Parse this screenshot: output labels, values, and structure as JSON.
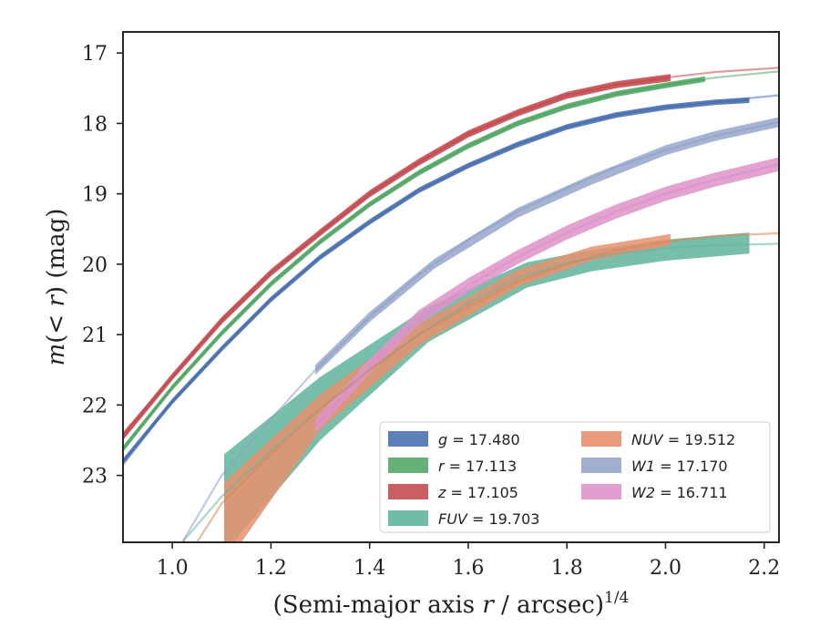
{
  "chart_data": {
    "type": "line",
    "xlabel_main": "(Semi-major axis ",
    "xlabel_var": "r",
    "xlabel_unit": " / arcsec)",
    "xlabel_power": "1/4",
    "ylabel_prefix": "m(",
    "ylabel_ineq": "< ",
    "ylabel_var": "r",
    "ylabel_suffix": ") (mag)",
    "xlim": [
      0.9,
      2.23
    ],
    "ylim": [
      23.95,
      16.7
    ],
    "y_inverted": true,
    "x_ticks": [
      1.0,
      1.2,
      1.4,
      1.6,
      1.8,
      2.0,
      2.2
    ],
    "x_tick_labels": [
      "1.0",
      "1.2",
      "1.4",
      "1.6",
      "1.8",
      "2.0",
      "2.2"
    ],
    "y_ticks": [
      17,
      18,
      19,
      20,
      21,
      22,
      23
    ],
    "y_tick_labels": [
      "17",
      "18",
      "19",
      "20",
      "21",
      "22",
      "23"
    ],
    "grid": false,
    "legend": {
      "placement": "lower-right",
      "columns": 2,
      "entries": [
        {
          "var": "g",
          "text": " = 17.480",
          "series": "g"
        },
        {
          "var": "r",
          "text": " = 17.113",
          "series": "r"
        },
        {
          "var": "z",
          "text": " = 17.105",
          "series": "z"
        },
        {
          "var": "FUV",
          "text": " = 19.703",
          "series": "FUV"
        },
        {
          "var": "NUV",
          "text": " = 19.512",
          "series": "NUV"
        },
        {
          "var": "W1",
          "text": " = 17.170",
          "series": "W1"
        },
        {
          "var": "W2",
          "text": " = 16.711",
          "series": "W2"
        }
      ]
    },
    "series": [
      {
        "name": "g",
        "color": "#4c72b0",
        "model": [
          [
            0.9,
            22.85
          ],
          [
            1.0,
            21.95
          ],
          [
            1.1,
            21.2
          ],
          [
            1.2,
            20.5
          ],
          [
            1.3,
            19.9
          ],
          [
            1.4,
            19.4
          ],
          [
            1.5,
            18.95
          ],
          [
            1.6,
            18.6
          ],
          [
            1.7,
            18.3
          ],
          [
            1.8,
            18.05
          ],
          [
            1.9,
            17.88
          ],
          [
            2.0,
            17.77
          ],
          [
            2.1,
            17.69
          ],
          [
            2.23,
            17.6
          ]
        ],
        "profile": [
          [
            0.9,
            22.8
          ],
          [
            1.0,
            21.95
          ],
          [
            1.1,
            21.2
          ],
          [
            1.2,
            20.5
          ],
          [
            1.3,
            19.9
          ],
          [
            1.4,
            19.4
          ],
          [
            1.5,
            18.95
          ],
          [
            1.6,
            18.6
          ],
          [
            1.7,
            18.3
          ],
          [
            1.8,
            18.05
          ],
          [
            1.9,
            17.88
          ],
          [
            2.0,
            17.77
          ],
          [
            2.1,
            17.7
          ],
          [
            2.17,
            17.67
          ]
        ],
        "err": 0.04,
        "profile_x_end": 2.17
      },
      {
        "name": "r",
        "color": "#55a868",
        "model": [
          [
            0.9,
            22.65
          ],
          [
            1.0,
            21.75
          ],
          [
            1.1,
            20.98
          ],
          [
            1.2,
            20.28
          ],
          [
            1.3,
            19.68
          ],
          [
            1.4,
            19.15
          ],
          [
            1.5,
            18.7
          ],
          [
            1.6,
            18.32
          ],
          [
            1.7,
            18.0
          ],
          [
            1.8,
            17.76
          ],
          [
            1.9,
            17.57
          ],
          [
            2.0,
            17.45
          ],
          [
            2.1,
            17.35
          ],
          [
            2.23,
            17.26
          ]
        ],
        "profile": [
          [
            0.9,
            22.62
          ],
          [
            1.0,
            21.75
          ],
          [
            1.1,
            20.98
          ],
          [
            1.2,
            20.28
          ],
          [
            1.3,
            19.68
          ],
          [
            1.4,
            19.15
          ],
          [
            1.5,
            18.7
          ],
          [
            1.6,
            18.32
          ],
          [
            1.7,
            18.0
          ],
          [
            1.8,
            17.76
          ],
          [
            1.9,
            17.58
          ],
          [
            2.0,
            17.46
          ],
          [
            2.08,
            17.37
          ]
        ],
        "err": 0.04
      },
      {
        "name": "z",
        "color": "#c44e52",
        "model": [
          [
            0.9,
            22.4
          ],
          [
            1.0,
            21.6
          ],
          [
            1.1,
            20.8
          ],
          [
            1.2,
            20.12
          ],
          [
            1.3,
            19.55
          ],
          [
            1.4,
            19.0
          ],
          [
            1.5,
            18.55
          ],
          [
            1.6,
            18.15
          ],
          [
            1.7,
            17.85
          ],
          [
            1.8,
            17.6
          ],
          [
            1.9,
            17.45
          ],
          [
            2.0,
            17.35
          ],
          [
            2.1,
            17.27
          ],
          [
            2.23,
            17.21
          ]
        ],
        "profile": [
          [
            0.9,
            22.45
          ],
          [
            1.0,
            21.6
          ],
          [
            1.1,
            20.8
          ],
          [
            1.2,
            20.12
          ],
          [
            1.3,
            19.55
          ],
          [
            1.4,
            19.0
          ],
          [
            1.5,
            18.55
          ],
          [
            1.6,
            18.15
          ],
          [
            1.7,
            17.85
          ],
          [
            1.8,
            17.6
          ],
          [
            1.9,
            17.45
          ],
          [
            2.01,
            17.35
          ]
        ],
        "err": 0.05
      },
      {
        "name": "FUV",
        "color": "#64b5a0",
        "band_color": "#5fb49c",
        "model": [
          [
            1.02,
            23.95
          ],
          [
            1.1,
            23.3
          ],
          [
            1.2,
            22.65
          ],
          [
            1.3,
            22.05
          ],
          [
            1.4,
            21.5
          ],
          [
            1.5,
            21.0
          ],
          [
            1.6,
            20.55
          ],
          [
            1.7,
            20.2
          ],
          [
            1.8,
            19.98
          ],
          [
            1.9,
            19.85
          ],
          [
            2.0,
            19.77
          ],
          [
            2.1,
            19.73
          ],
          [
            2.23,
            19.71
          ]
        ],
        "profile": [
          [
            1.105,
            23.4
          ],
          [
            1.3,
            22.05
          ],
          [
            1.52,
            20.85
          ],
          [
            1.72,
            20.15
          ],
          [
            1.85,
            19.95
          ],
          [
            2.0,
            19.8
          ],
          [
            2.17,
            19.7
          ]
        ],
        "err_lo": [
          0.7,
          0.45,
          0.25,
          0.18,
          0.15,
          0.15,
          0.15
        ],
        "err_hi": [
          0.7,
          0.45,
          0.25,
          0.18,
          0.15,
          0.15,
          0.15
        ]
      },
      {
        "name": "NUV",
        "color": "#dd8452",
        "band_color": "#e8906e",
        "model": [
          [
            1.05,
            23.95
          ],
          [
            1.1,
            23.4
          ],
          [
            1.2,
            22.7
          ],
          [
            1.3,
            22.05
          ],
          [
            1.4,
            21.5
          ],
          [
            1.5,
            21.0
          ],
          [
            1.6,
            20.6
          ],
          [
            1.7,
            20.25
          ],
          [
            1.8,
            20.0
          ],
          [
            1.9,
            19.8
          ],
          [
            2.0,
            19.68
          ],
          [
            2.1,
            19.6
          ],
          [
            2.23,
            19.56
          ]
        ],
        "profile": [
          [
            1.105,
            23.7
          ],
          [
            1.3,
            22.1
          ],
          [
            1.5,
            21.0
          ],
          [
            1.7,
            20.2
          ],
          [
            1.85,
            19.85
          ],
          [
            2.01,
            19.65
          ]
        ],
        "err_lo": [
          0.6,
          0.25,
          0.15,
          0.12,
          0.1,
          0.08
        ],
        "err_hi": [
          0.6,
          0.25,
          0.15,
          0.12,
          0.1,
          0.08
        ]
      },
      {
        "name": "W1",
        "color": "#8c9fc6",
        "band_color": "#96a6ca",
        "model": [
          [
            1.02,
            23.95
          ],
          [
            1.1,
            23.0
          ],
          [
            1.2,
            22.2
          ],
          [
            1.29,
            21.5
          ],
          [
            1.4,
            20.75
          ],
          [
            1.5,
            20.15
          ],
          [
            1.6,
            19.65
          ],
          [
            1.7,
            19.25
          ],
          [
            1.8,
            18.92
          ],
          [
            1.9,
            18.62
          ],
          [
            2.0,
            18.38
          ],
          [
            2.1,
            18.18
          ],
          [
            2.23,
            17.98
          ]
        ],
        "profile": [
          [
            1.29,
            21.5
          ],
          [
            1.4,
            20.75
          ],
          [
            1.53,
            20.0
          ],
          [
            1.7,
            19.27
          ],
          [
            1.85,
            18.8
          ],
          [
            2.0,
            18.38
          ],
          [
            2.1,
            18.18
          ],
          [
            2.23,
            17.98
          ]
        ],
        "err": 0.07
      },
      {
        "name": "W2",
        "color": "#da8bc3",
        "band_color": "#de93c9",
        "model": [
          [
            1.29,
            22.3
          ],
          [
            1.4,
            21.45
          ],
          [
            1.5,
            20.8
          ],
          [
            1.6,
            20.3
          ],
          [
            1.7,
            19.9
          ],
          [
            1.8,
            19.55
          ],
          [
            1.9,
            19.25
          ],
          [
            2.0,
            19.0
          ],
          [
            2.1,
            18.8
          ],
          [
            2.23,
            18.58
          ]
        ],
        "profile": [
          [
            1.29,
            22.3
          ],
          [
            1.4,
            21.45
          ],
          [
            1.5,
            20.75
          ],
          [
            1.6,
            20.3
          ],
          [
            1.7,
            19.9
          ],
          [
            1.8,
            19.55
          ],
          [
            1.9,
            19.25
          ],
          [
            2.0,
            19.0
          ],
          [
            2.1,
            18.8
          ],
          [
            2.23,
            18.58
          ]
        ],
        "err": 0.1
      }
    ]
  }
}
